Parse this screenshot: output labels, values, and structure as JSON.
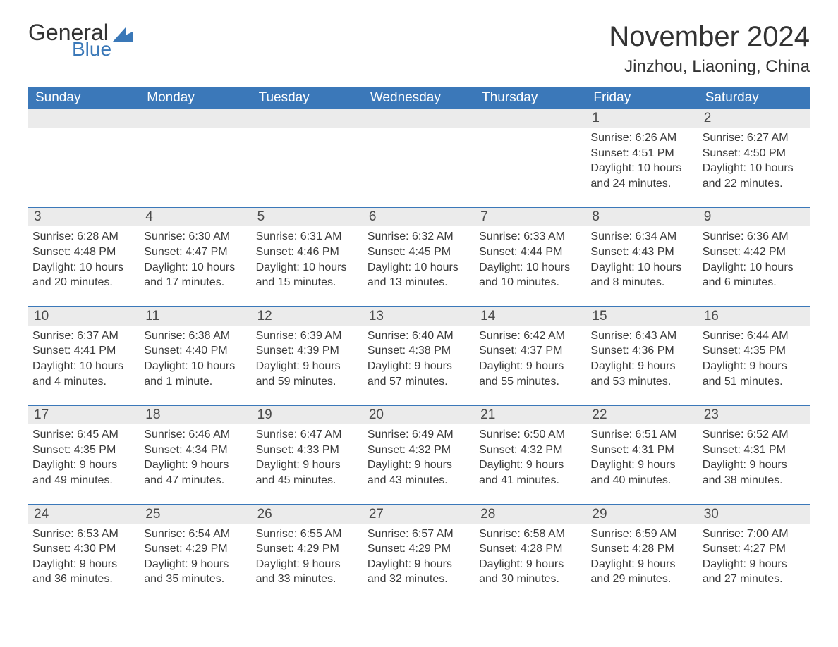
{
  "logo": {
    "text_main": "General",
    "text_sub": "Blue",
    "main_color": "#333333",
    "sub_color": "#3a78b8",
    "icon_color": "#3a78b8"
  },
  "header": {
    "month_title": "November 2024",
    "location": "Jinzhou, Liaoning, China"
  },
  "styling": {
    "header_bg": "#3b78b9",
    "header_text": "#ffffff",
    "daynum_bg": "#ebebeb",
    "daynum_text": "#4a4a4a",
    "body_text": "#3a3a3a",
    "row_border": "#3b78b9",
    "page_bg": "#ffffff",
    "font_family": "Arial",
    "month_title_fontsize": 40,
    "location_fontsize": 24,
    "weekday_fontsize": 19,
    "daynum_fontsize": 19,
    "body_fontsize": 16
  },
  "weekdays": [
    "Sunday",
    "Monday",
    "Tuesday",
    "Wednesday",
    "Thursday",
    "Friday",
    "Saturday"
  ],
  "weeks": [
    [
      {
        "day": "",
        "sunrise": "",
        "sunset": "",
        "daylight": ""
      },
      {
        "day": "",
        "sunrise": "",
        "sunset": "",
        "daylight": ""
      },
      {
        "day": "",
        "sunrise": "",
        "sunset": "",
        "daylight": ""
      },
      {
        "day": "",
        "sunrise": "",
        "sunset": "",
        "daylight": ""
      },
      {
        "day": "",
        "sunrise": "",
        "sunset": "",
        "daylight": ""
      },
      {
        "day": "1",
        "sunrise": "Sunrise: 6:26 AM",
        "sunset": "Sunset: 4:51 PM",
        "daylight": "Daylight: 10 hours and 24 minutes."
      },
      {
        "day": "2",
        "sunrise": "Sunrise: 6:27 AM",
        "sunset": "Sunset: 4:50 PM",
        "daylight": "Daylight: 10 hours and 22 minutes."
      }
    ],
    [
      {
        "day": "3",
        "sunrise": "Sunrise: 6:28 AM",
        "sunset": "Sunset: 4:48 PM",
        "daylight": "Daylight: 10 hours and 20 minutes."
      },
      {
        "day": "4",
        "sunrise": "Sunrise: 6:30 AM",
        "sunset": "Sunset: 4:47 PM",
        "daylight": "Daylight: 10 hours and 17 minutes."
      },
      {
        "day": "5",
        "sunrise": "Sunrise: 6:31 AM",
        "sunset": "Sunset: 4:46 PM",
        "daylight": "Daylight: 10 hours and 15 minutes."
      },
      {
        "day": "6",
        "sunrise": "Sunrise: 6:32 AM",
        "sunset": "Sunset: 4:45 PM",
        "daylight": "Daylight: 10 hours and 13 minutes."
      },
      {
        "day": "7",
        "sunrise": "Sunrise: 6:33 AM",
        "sunset": "Sunset: 4:44 PM",
        "daylight": "Daylight: 10 hours and 10 minutes."
      },
      {
        "day": "8",
        "sunrise": "Sunrise: 6:34 AM",
        "sunset": "Sunset: 4:43 PM",
        "daylight": "Daylight: 10 hours and 8 minutes."
      },
      {
        "day": "9",
        "sunrise": "Sunrise: 6:36 AM",
        "sunset": "Sunset: 4:42 PM",
        "daylight": "Daylight: 10 hours and 6 minutes."
      }
    ],
    [
      {
        "day": "10",
        "sunrise": "Sunrise: 6:37 AM",
        "sunset": "Sunset: 4:41 PM",
        "daylight": "Daylight: 10 hours and 4 minutes."
      },
      {
        "day": "11",
        "sunrise": "Sunrise: 6:38 AM",
        "sunset": "Sunset: 4:40 PM",
        "daylight": "Daylight: 10 hours and 1 minute."
      },
      {
        "day": "12",
        "sunrise": "Sunrise: 6:39 AM",
        "sunset": "Sunset: 4:39 PM",
        "daylight": "Daylight: 9 hours and 59 minutes."
      },
      {
        "day": "13",
        "sunrise": "Sunrise: 6:40 AM",
        "sunset": "Sunset: 4:38 PM",
        "daylight": "Daylight: 9 hours and 57 minutes."
      },
      {
        "day": "14",
        "sunrise": "Sunrise: 6:42 AM",
        "sunset": "Sunset: 4:37 PM",
        "daylight": "Daylight: 9 hours and 55 minutes."
      },
      {
        "day": "15",
        "sunrise": "Sunrise: 6:43 AM",
        "sunset": "Sunset: 4:36 PM",
        "daylight": "Daylight: 9 hours and 53 minutes."
      },
      {
        "day": "16",
        "sunrise": "Sunrise: 6:44 AM",
        "sunset": "Sunset: 4:35 PM",
        "daylight": "Daylight: 9 hours and 51 minutes."
      }
    ],
    [
      {
        "day": "17",
        "sunrise": "Sunrise: 6:45 AM",
        "sunset": "Sunset: 4:35 PM",
        "daylight": "Daylight: 9 hours and 49 minutes."
      },
      {
        "day": "18",
        "sunrise": "Sunrise: 6:46 AM",
        "sunset": "Sunset: 4:34 PM",
        "daylight": "Daylight: 9 hours and 47 minutes."
      },
      {
        "day": "19",
        "sunrise": "Sunrise: 6:47 AM",
        "sunset": "Sunset: 4:33 PM",
        "daylight": "Daylight: 9 hours and 45 minutes."
      },
      {
        "day": "20",
        "sunrise": "Sunrise: 6:49 AM",
        "sunset": "Sunset: 4:32 PM",
        "daylight": "Daylight: 9 hours and 43 minutes."
      },
      {
        "day": "21",
        "sunrise": "Sunrise: 6:50 AM",
        "sunset": "Sunset: 4:32 PM",
        "daylight": "Daylight: 9 hours and 41 minutes."
      },
      {
        "day": "22",
        "sunrise": "Sunrise: 6:51 AM",
        "sunset": "Sunset: 4:31 PM",
        "daylight": "Daylight: 9 hours and 40 minutes."
      },
      {
        "day": "23",
        "sunrise": "Sunrise: 6:52 AM",
        "sunset": "Sunset: 4:31 PM",
        "daylight": "Daylight: 9 hours and 38 minutes."
      }
    ],
    [
      {
        "day": "24",
        "sunrise": "Sunrise: 6:53 AM",
        "sunset": "Sunset: 4:30 PM",
        "daylight": "Daylight: 9 hours and 36 minutes."
      },
      {
        "day": "25",
        "sunrise": "Sunrise: 6:54 AM",
        "sunset": "Sunset: 4:29 PM",
        "daylight": "Daylight: 9 hours and 35 minutes."
      },
      {
        "day": "26",
        "sunrise": "Sunrise: 6:55 AM",
        "sunset": "Sunset: 4:29 PM",
        "daylight": "Daylight: 9 hours and 33 minutes."
      },
      {
        "day": "27",
        "sunrise": "Sunrise: 6:57 AM",
        "sunset": "Sunset: 4:29 PM",
        "daylight": "Daylight: 9 hours and 32 minutes."
      },
      {
        "day": "28",
        "sunrise": "Sunrise: 6:58 AM",
        "sunset": "Sunset: 4:28 PM",
        "daylight": "Daylight: 9 hours and 30 minutes."
      },
      {
        "day": "29",
        "sunrise": "Sunrise: 6:59 AM",
        "sunset": "Sunset: 4:28 PM",
        "daylight": "Daylight: 9 hours and 29 minutes."
      },
      {
        "day": "30",
        "sunrise": "Sunrise: 7:00 AM",
        "sunset": "Sunset: 4:27 PM",
        "daylight": "Daylight: 9 hours and 27 minutes."
      }
    ]
  ]
}
